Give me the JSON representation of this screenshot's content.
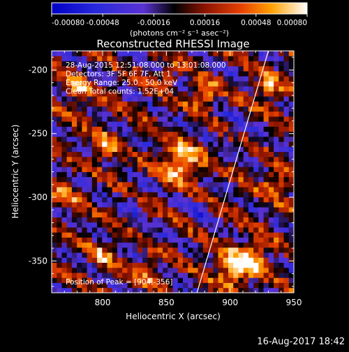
{
  "chart_data": {
    "type": "heatmap",
    "title": "Reconstructed RHESSI Image",
    "xlabel": "Heliocentric X (arcsec)",
    "ylabel": "Heliocentric Y (arcsec)",
    "xlim": [
      760,
      950
    ],
    "ylim": [
      -375,
      -185
    ],
    "x_ticks": [
      800,
      850,
      900,
      950
    ],
    "y_ticks": [
      -200,
      -250,
      -300,
      -350
    ],
    "colorbar": {
      "ticks": [
        -0.0008,
        -0.00048,
        -0.00016,
        0.00016,
        0.00048,
        0.0008
      ],
      "tick_labels": [
        "-0.00080",
        "-0.00048",
        "-0.00016",
        "0.00016",
        "0.00048",
        "0.00080"
      ],
      "label": "(photons cm⁻² s⁻¹ asec⁻²)",
      "range": [
        -0.0008,
        0.0008
      ]
    },
    "annotations": [
      "28-Aug-2015 12:51:08.000 to 13:01:08.000",
      "Detectors: 3F 5F 6F 7F, Att 1",
      "Energy Range: 25.0 - 50.0 keV",
      "Clean     Total counts: 1.52E+04"
    ],
    "peak_label": "Position of Peak = [904,-356]",
    "peak": [
      904,
      -356
    ],
    "limb_line": [
      [
        874,
        -375
      ],
      [
        930,
        -185
      ]
    ],
    "hotspots": [
      {
        "x": 862,
        "y": -272,
        "r": 14,
        "v": 0.00085
      },
      {
        "x": 904,
        "y": -356,
        "r": 14,
        "v": 0.0008
      },
      {
        "x": 920,
        "y": -345,
        "r": 11,
        "v": 0.00062
      },
      {
        "x": 880,
        "y": -220,
        "r": 10,
        "v": 0.0006
      },
      {
        "x": 780,
        "y": -215,
        "r": 10,
        "v": 0.00055
      },
      {
        "x": 800,
        "y": -260,
        "r": 11,
        "v": 0.0005
      },
      {
        "x": 930,
        "y": -215,
        "r": 10,
        "v": 0.0006
      },
      {
        "x": 935,
        "y": -290,
        "r": 10,
        "v": 0.0005
      },
      {
        "x": 800,
        "y": -345,
        "r": 10,
        "v": 0.0004
      },
      {
        "x": 850,
        "y": -205,
        "r": 9,
        "v": 0.0004
      },
      {
        "x": 770,
        "y": -300,
        "r": 10,
        "v": 0.00045
      },
      {
        "x": 835,
        "y": -360,
        "r": 10,
        "v": 0.0004
      }
    ],
    "coldspots": [
      {
        "x": 875,
        "y": -310,
        "r": 9,
        "v": -0.0003
      },
      {
        "x": 905,
        "y": -245,
        "r": 9,
        "v": -0.0003
      },
      {
        "x": 820,
        "y": -305,
        "r": 8,
        "v": -0.00025
      }
    ],
    "background_level": 2e-05
  },
  "timestamp": "16-Aug-2017 18:42"
}
